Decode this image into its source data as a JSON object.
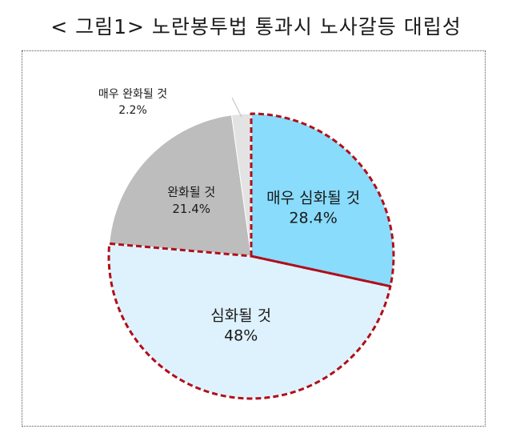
{
  "title": "< 그림1> 노란봉투법 통과시 노사갈등 대립성",
  "chart_data": {
    "type": "pie",
    "title": "< 그림1> 노란봉투법 통과시 노사갈등 대립성",
    "start": "12 o'clock, clockwise",
    "slices": [
      {
        "label": "매우 심화될 것",
        "value": 28.4,
        "value_label": "28.4%",
        "color": "#89dcfb",
        "highlighted": true
      },
      {
        "label": "심화될 것",
        "value": 48.0,
        "value_label": "48%",
        "color": "#def2fd",
        "highlighted": true
      },
      {
        "label": "완화될 것",
        "value": 21.4,
        "value_label": "21.4%",
        "color": "#bdbdbd",
        "highlighted": false
      },
      {
        "label": "매우 완화될 것",
        "value": 2.2,
        "value_label": "2.2%",
        "color": "#e3e3e3",
        "highlighted": false
      }
    ],
    "highlight_outline_color": "#b00f1a"
  }
}
